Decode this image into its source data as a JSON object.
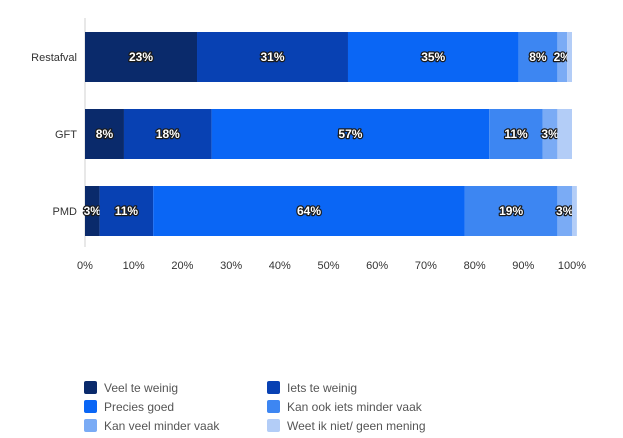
{
  "chart_data": {
    "type": "bar",
    "orientation": "horizontal",
    "stacked": true,
    "categories": [
      "Restafval",
      "GFT",
      "PMD"
    ],
    "series": [
      {
        "name": "Veel te weinig",
        "color": "#0a2a6b",
        "values": [
          23,
          8,
          3
        ],
        "labels": [
          "23%",
          "8%",
          "3%"
        ]
      },
      {
        "name": "Iets te weinig",
        "color": "#0841b3",
        "values": [
          31,
          18,
          11
        ],
        "labels": [
          "31%",
          "18%",
          "11%"
        ]
      },
      {
        "name": "Precies goed",
        "color": "#0a66f5",
        "values": [
          35,
          57,
          64
        ],
        "labels": [
          "35%",
          "57%",
          "64%"
        ]
      },
      {
        "name": "Kan ook iets minder vaak",
        "color": "#3d86f2",
        "values": [
          8,
          11,
          19
        ],
        "labels": [
          "8%",
          "11%",
          "19%"
        ]
      },
      {
        "name": "Kan veel minder vaak",
        "color": "#7aabf5",
        "values": [
          2,
          3,
          3
        ],
        "labels": [
          "2%",
          "3%",
          "3%"
        ]
      },
      {
        "name": "Weet ik niet/ geen mening",
        "color": "#b3cdf7",
        "values": [
          1,
          3,
          1
        ],
        "labels": [
          "",
          "",
          ""
        ]
      }
    ],
    "xlim": [
      0,
      100
    ],
    "xticks": [
      "0%",
      "10%",
      "20%",
      "30%",
      "40%",
      "50%",
      "60%",
      "70%",
      "80%",
      "90%",
      "100%"
    ],
    "legend_position": "bottom",
    "grid": false
  }
}
